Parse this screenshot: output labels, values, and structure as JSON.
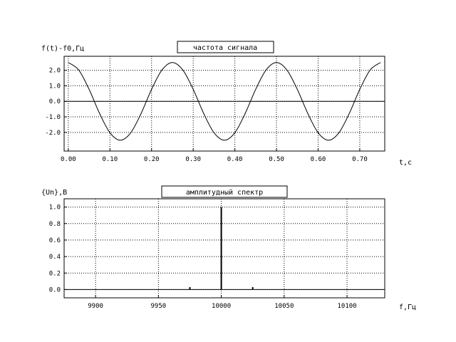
{
  "chart_data": [
    {
      "type": "line",
      "title": "частота сигнала",
      "ylabel": "f(t)-f0,Гц",
      "xlabel": "t,c",
      "xlim": [
        -0.01,
        0.76
      ],
      "ylim": [
        -3.2,
        2.9
      ],
      "x_ticks": [
        0.0,
        0.1,
        0.2,
        0.3,
        0.4,
        0.5,
        0.6,
        0.7
      ],
      "x_tick_labels": [
        "0.00",
        "0.10",
        "0.20",
        "0.30",
        "0.40",
        "0.50",
        "0.60",
        "0.70"
      ],
      "y_ticks": [
        -2.0,
        -1.0,
        0.0,
        1.0,
        2.0
      ],
      "y_tick_labels": [
        "-2.0",
        "-1.0",
        "0.0",
        "1.0",
        "2.0"
      ],
      "grid": true,
      "series": [
        {
          "x": [
            0.0,
            0.025,
            0.05,
            0.075,
            0.1,
            0.125,
            0.15,
            0.175,
            0.2,
            0.225,
            0.25,
            0.275,
            0.3,
            0.325,
            0.35,
            0.375,
            0.4,
            0.425,
            0.45,
            0.475,
            0.5,
            0.525,
            0.55,
            0.575,
            0.6,
            0.625,
            0.65,
            0.675,
            0.7,
            0.725,
            0.75
          ],
          "values": [
            2.5,
            2.02,
            0.77,
            -0.77,
            -2.02,
            -2.5,
            -2.02,
            -0.77,
            0.77,
            2.02,
            2.5,
            2.02,
            0.77,
            -0.77,
            -2.02,
            -2.5,
            -2.02,
            -0.77,
            0.77,
            2.02,
            2.5,
            2.02,
            0.77,
            -0.77,
            -2.02,
            -2.5,
            -2.02,
            -0.77,
            0.77,
            2.02,
            2.5
          ]
        }
      ]
    },
    {
      "type": "bar",
      "title": "амплитудный спектр",
      "ylabel": "{Un},В",
      "xlabel": "f,Гц",
      "xlim": [
        9875,
        10130
      ],
      "ylim": [
        -0.1,
        1.1
      ],
      "x_ticks": [
        9900,
        9950,
        10000,
        10050,
        10100
      ],
      "x_tick_labels": [
        "9900",
        "9950",
        "10000",
        "10050",
        "10100"
      ],
      "y_ticks": [
        0.0,
        0.2,
        0.4,
        0.6,
        0.8,
        1.0
      ],
      "y_tick_labels": [
        "0.0",
        "0.2",
        "0.4",
        "0.6",
        "0.8",
        "1.0"
      ],
      "grid": true,
      "series": [
        {
          "x": [
            9975,
            10000,
            10025
          ],
          "values": [
            0.03,
            1.0,
            0.03
          ]
        }
      ]
    }
  ]
}
